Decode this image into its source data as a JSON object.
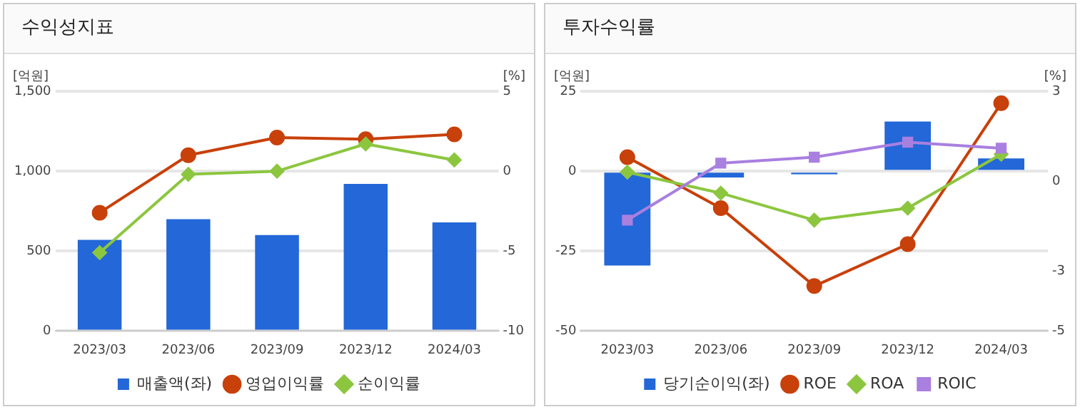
{
  "chart_data": [
    {
      "type": "bar",
      "title": "수익성지표",
      "ylabel": "[억원]",
      "y2label": "[%]",
      "categories": [
        "2023/03",
        "2023/06",
        "2023/09",
        "2023/12",
        "2024/03"
      ],
      "series": [
        {
          "name": "매출액(좌)",
          "color": "#2367d8",
          "values": [
            570,
            700,
            600,
            920,
            680
          ]
        },
        {
          "name": "영업이익률",
          "type": "line",
          "axis": "y2",
          "marker": "circle",
          "color": "#c8400a",
          "values": [
            -2.6,
            1.0,
            2.1,
            2.0,
            2.3
          ]
        },
        {
          "name": "순이익률",
          "type": "line",
          "axis": "y2",
          "marker": "diamond",
          "color": "#8cc63f",
          "values": [
            -5.1,
            -0.2,
            0.0,
            1.7,
            0.7
          ]
        }
      ],
      "ylim": [
        0,
        1500
      ],
      "yticks": [
        0,
        500,
        {
          "value": 1000,
          "label": "1,000"
        },
        {
          "value": 1500,
          "label": "1,500"
        }
      ],
      "y2lim": [
        -10,
        5
      ],
      "y2ticks": [
        -10,
        -5,
        0,
        5
      ],
      "grid": "y",
      "legend": "bottom"
    },
    {
      "type": "bar",
      "title": "투자수익률",
      "ylabel": "[억원]",
      "y2label": "[%]",
      "categories": [
        "2023/03",
        "2023/06",
        "2023/09",
        "2023/12",
        "2024/03"
      ],
      "series": [
        {
          "name": "당기순이익(좌)",
          "color": "#2367d8",
          "values": [
            -29.5,
            -2,
            -1,
            15.5,
            4
          ]
        },
        {
          "name": "ROE",
          "type": "line",
          "axis": "y2",
          "marker": "circle",
          "color": "#c8400a",
          "values": [
            0.8,
            -0.9,
            -3.5,
            -2.1,
            2.6
          ]
        },
        {
          "name": "ROA",
          "type": "line",
          "axis": "y2",
          "marker": "diamond",
          "color": "#8cc63f",
          "values": [
            0.3,
            -0.4,
            -1.3,
            -0.9,
            0.9
          ]
        },
        {
          "name": "ROIC",
          "type": "line",
          "axis": "y2",
          "marker": "square",
          "color": "#a97fe0",
          "values": [
            -1.3,
            0.6,
            0.8,
            1.3,
            1.1
          ]
        }
      ],
      "ylim": [
        -50,
        25
      ],
      "yticks": [
        -50,
        -25,
        0,
        25
      ],
      "y2lim": [
        -5,
        3
      ],
      "y2ticks": [
        -5,
        -3,
        0,
        3
      ],
      "grid": "y",
      "legend": "bottom"
    }
  ]
}
